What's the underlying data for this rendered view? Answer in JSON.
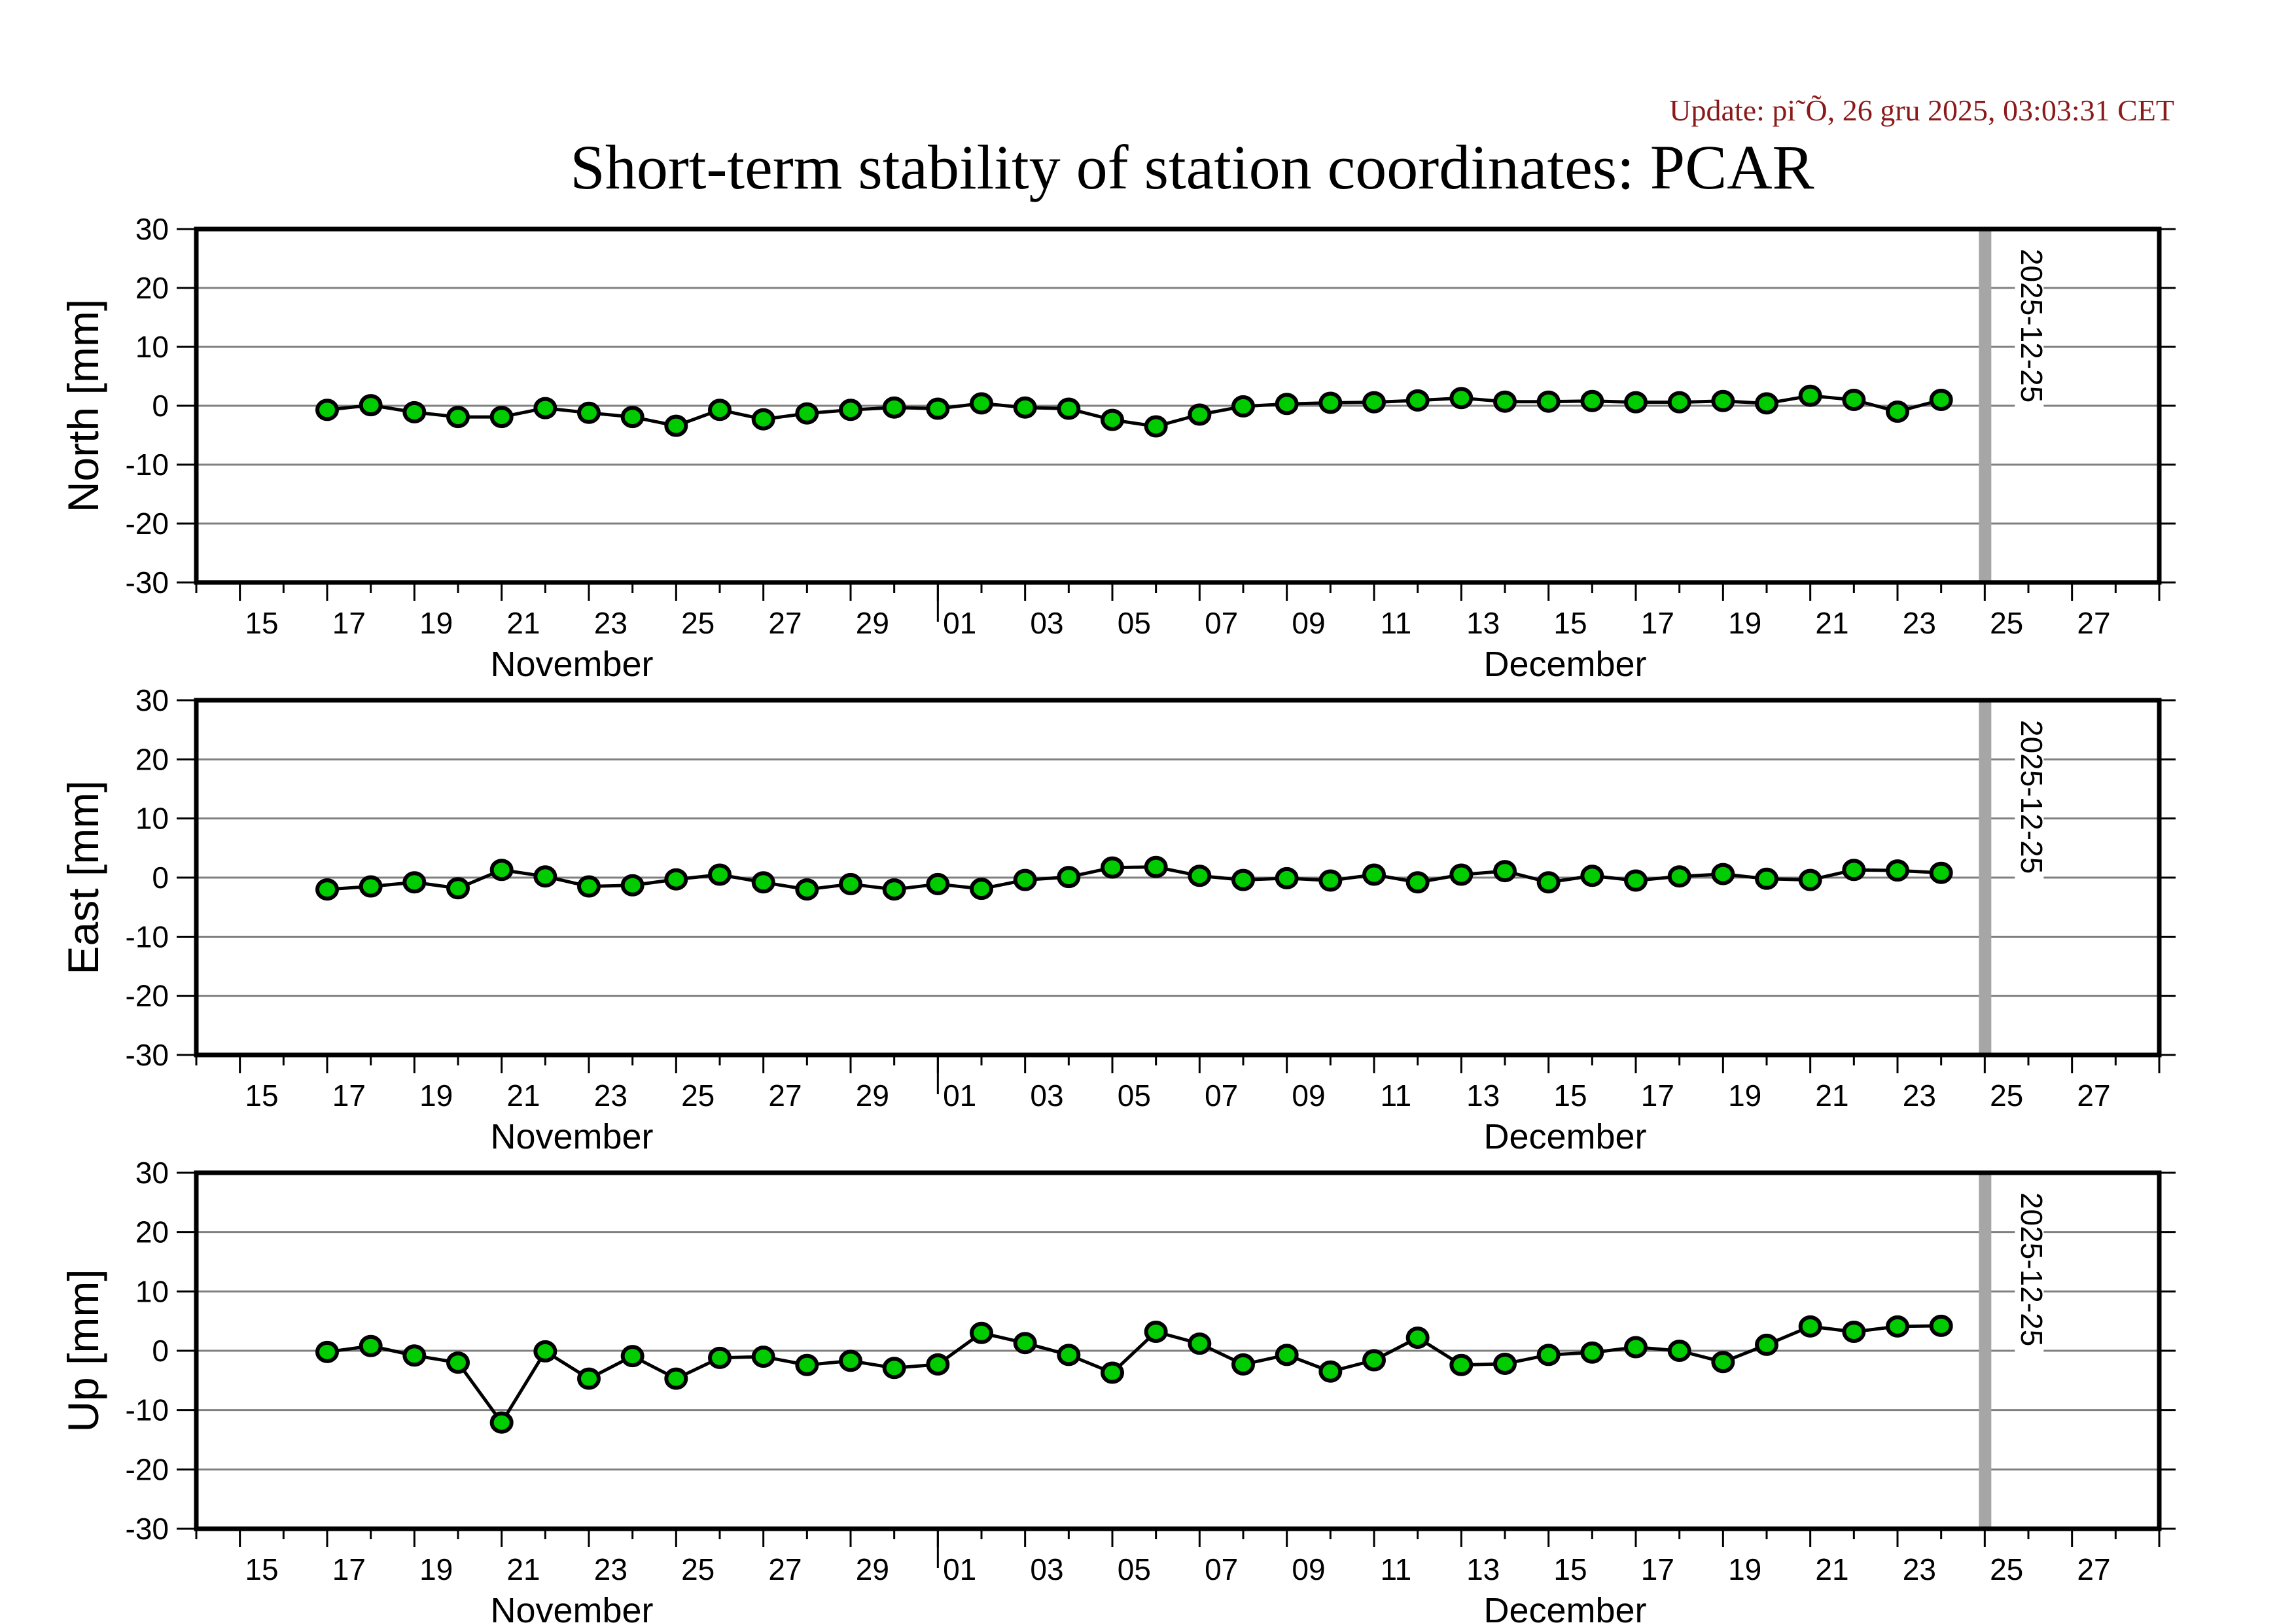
{
  "update_text": "Update: pi˜Õ, 26 gru 2025, 03:03:31 CET",
  "colors": {
    "update_text": "#8b1a1a",
    "marker_fill": "#00cc00",
    "marker_edge": "#000000",
    "line": "#000000",
    "grid": "#808080",
    "event_line": "#a6a6a6",
    "frame": "#000000"
  },
  "chart_data": {
    "type": "line",
    "title": "Short-term stability of station coordinates: PCAR",
    "station": "PCAR",
    "x_axis": {
      "start": "2025-11-14",
      "end": "2025-12-29",
      "tick_labels": [
        "15",
        "17",
        "19",
        "21",
        "23",
        "25",
        "27",
        "29",
        "01",
        "03",
        "05",
        "07",
        "09",
        "11",
        "13",
        "15",
        "17",
        "19",
        "21",
        "23",
        "25",
        "27"
      ],
      "tick_label_dates": [
        "2025-11-15",
        "2025-11-17",
        "2025-11-19",
        "2025-11-21",
        "2025-11-23",
        "2025-11-25",
        "2025-11-27",
        "2025-11-29",
        "2025-12-01",
        "2025-12-03",
        "2025-12-05",
        "2025-12-07",
        "2025-12-09",
        "2025-12-11",
        "2025-12-13",
        "2025-12-15",
        "2025-12-17",
        "2025-12-19",
        "2025-12-21",
        "2025-12-23",
        "2025-12-25",
        "2025-12-27"
      ],
      "month_labels": [
        {
          "label": "November",
          "date": "2025-11-14"
        },
        {
          "label": "December",
          "date": "2025-12-13"
        }
      ],
      "month_boundary": "2025-12-01"
    },
    "event_marker": {
      "date": "2025-12-25",
      "label": "2025-12-25"
    },
    "x": [
      "2025-11-17",
      "2025-11-18",
      "2025-11-19",
      "2025-11-20",
      "2025-11-21",
      "2025-11-22",
      "2025-11-23",
      "2025-11-24",
      "2025-11-25",
      "2025-11-26",
      "2025-11-27",
      "2025-11-28",
      "2025-11-29",
      "2025-11-30",
      "2025-12-01",
      "2025-12-02",
      "2025-12-03",
      "2025-12-04",
      "2025-12-05",
      "2025-12-06",
      "2025-12-07",
      "2025-12-08",
      "2025-12-09",
      "2025-12-10",
      "2025-12-11",
      "2025-12-12",
      "2025-12-13",
      "2025-12-14",
      "2025-12-15",
      "2025-12-16",
      "2025-12-17",
      "2025-12-18",
      "2025-12-19",
      "2025-12-20",
      "2025-12-21",
      "2025-12-22",
      "2025-12-23",
      "2025-12-24"
    ],
    "panels": [
      {
        "name": "North",
        "ylabel": "North [mm]",
        "ylim": [
          -30,
          30
        ],
        "yticks": [
          30,
          20,
          10,
          0,
          -10,
          -20,
          -30
        ],
        "grid": true,
        "values": [
          -0.7,
          0.1,
          -1.1,
          -1.9,
          -1.9,
          -0.4,
          -1.2,
          -1.9,
          -3.4,
          -0.7,
          -2.3,
          -1.3,
          -0.7,
          -0.3,
          -0.5,
          0.4,
          -0.3,
          -0.5,
          -2.4,
          -3.5,
          -1.5,
          -0.1,
          0.3,
          0.5,
          0.6,
          0.9,
          1.3,
          0.7,
          0.7,
          0.8,
          0.6,
          0.6,
          0.8,
          0.4,
          1.7,
          1.0,
          -1.0,
          1.0
        ]
      },
      {
        "name": "East",
        "ylabel": "East [mm]",
        "ylim": [
          -30,
          30
        ],
        "yticks": [
          30,
          20,
          10,
          0,
          -10,
          -20,
          -30
        ],
        "grid": true,
        "values": [
          -2.0,
          -1.5,
          -0.8,
          -1.8,
          1.3,
          0.2,
          -1.5,
          -1.3,
          -0.3,
          0.5,
          -0.8,
          -2.0,
          -1.1,
          -2.0,
          -1.1,
          -1.9,
          -0.4,
          0.1,
          1.7,
          1.8,
          0.3,
          -0.4,
          -0.1,
          -0.5,
          0.5,
          -0.8,
          0.5,
          1.1,
          -0.8,
          0.3,
          -0.5,
          0.2,
          0.6,
          -0.2,
          -0.4,
          1.3,
          1.2,
          0.8
        ]
      },
      {
        "name": "Up",
        "ylabel": "Up [mm]",
        "ylim": [
          -30,
          30
        ],
        "yticks": [
          30,
          20,
          10,
          0,
          -10,
          -20,
          -30
        ],
        "grid": true,
        "values": [
          -0.2,
          0.8,
          -0.8,
          -2.0,
          -12.1,
          -0.1,
          -4.7,
          -0.9,
          -4.7,
          -1.2,
          -1.0,
          -2.4,
          -1.7,
          -2.9,
          -2.3,
          3.0,
          1.3,
          -0.7,
          -3.7,
          3.2,
          1.2,
          -2.3,
          -0.7,
          -3.5,
          -1.6,
          2.2,
          -2.4,
          -2.2,
          -0.7,
          -0.3,
          0.6,
          0.0,
          -1.9,
          1.0,
          4.1,
          3.2,
          4.1,
          4.2
        ]
      }
    ]
  }
}
